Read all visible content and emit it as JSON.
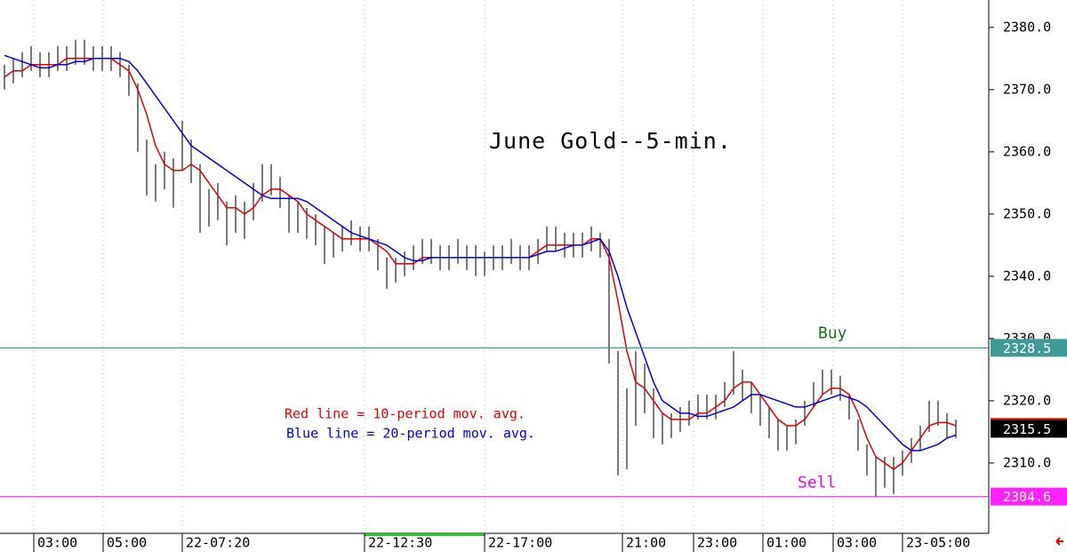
{
  "chart_data": {
    "type": "hilo",
    "title": "June Gold--5-min.",
    "ylim": [
      2298.7,
      2384.4
    ],
    "yticks": [
      {
        "value": 2310,
        "label": "2310.0"
      },
      {
        "value": 2320,
        "label": "2320.0"
      },
      {
        "value": 2330,
        "label": "2330.0"
      },
      {
        "value": 2340,
        "label": "2340.0"
      },
      {
        "value": 2350,
        "label": "2350.0"
      },
      {
        "value": 2360,
        "label": "2360.0"
      },
      {
        "value": 2370,
        "label": "2370.0"
      },
      {
        "value": 2380,
        "label": "2380.0"
      }
    ],
    "xlim": [
      -0.5,
      110.7
    ],
    "xticks": [
      {
        "value": 3.3,
        "label": "03:00"
      },
      {
        "value": 11.1,
        "label": "05:00"
      },
      {
        "value": 20,
        "label": "22-07:20"
      },
      {
        "value": 40.5,
        "label": "22-12:30"
      },
      {
        "value": 54,
        "label": "22-17:00"
      },
      {
        "value": 69.5,
        "label": "21:00"
      },
      {
        "value": 77.5,
        "label": "23:00"
      },
      {
        "value": 85.3,
        "label": "01:00"
      },
      {
        "value": 93.2,
        "label": "03:00"
      },
      {
        "value": 101,
        "label": "23-05:00"
      }
    ],
    "bar_color": "#333333",
    "high": [
      2374,
      2375,
      2376,
      2377,
      2376,
      2376,
      2377,
      2377,
      2378,
      2378,
      2377,
      2377,
      2377,
      2376,
      2374,
      2371,
      2362,
      2358,
      2360,
      2359,
      2365,
      2362,
      2358,
      2354,
      2355,
      2352,
      2353,
      2352,
      2355,
      2358,
      2358,
      2356,
      2353,
      2352,
      2351,
      2350,
      2348,
      2347,
      2348,
      2349,
      2348,
      2348,
      2346,
      2343,
      2343,
      2344,
      2345,
      2346,
      2346,
      2345,
      2345,
      2346,
      2345,
      2345,
      2344,
      2345,
      2345,
      2346,
      2345,
      2345,
      2346,
      2348,
      2348,
      2347,
      2347,
      2347,
      2348,
      2347,
      2346,
      2328,
      2322,
      2328,
      2326,
      2322,
      2318,
      2318,
      2319,
      2320,
      2321,
      2321,
      2321,
      2323,
      2328,
      2325,
      2323,
      2321,
      2319,
      2317,
      2316,
      2317,
      2320,
      2323,
      2325,
      2325,
      2324,
      2321,
      2317,
      2313,
      2311,
      2311,
      2311,
      2312,
      2314,
      2316,
      2320,
      2320,
      2318,
      2317
    ],
    "low": [
      2370,
      2371,
      2372,
      2373,
      2372,
      2372,
      2373,
      2373,
      2374,
      2374,
      2373,
      2373,
      2373,
      2372,
      2369,
      2360,
      2353,
      2352,
      2354,
      2351,
      2357,
      2355,
      2347,
      2348,
      2349,
      2345,
      2347,
      2346,
      2349,
      2352,
      2353,
      2351,
      2347,
      2347,
      2346,
      2345,
      2342,
      2343,
      2344,
      2345,
      2344,
      2344,
      2341,
      2338,
      2339,
      2340,
      2341,
      2342,
      2342,
      2341,
      2341,
      2342,
      2341,
      2340,
      2340,
      2341,
      2341,
      2342,
      2341,
      2341,
      2342,
      2344,
      2344,
      2343,
      2343,
      2343,
      2344,
      2343,
      2326,
      2308,
      2309,
      2316,
      2318,
      2314,
      2313,
      2314,
      2315,
      2316,
      2317,
      2317,
      2317,
      2319,
      2321,
      2320,
      2318,
      2316,
      2314,
      2312,
      2312,
      2313,
      2316,
      2319,
      2321,
      2321,
      2320,
      2317,
      2312,
      2308,
      2304.6,
      2306,
      2305,
      2308,
      2310,
      2312,
      2315,
      2316,
      2314,
      2314
    ],
    "lines": [
      {
        "color": "#e00000",
        "values": [
          2372,
          2373,
          2373,
          2374,
          2374,
          2374,
          2374,
          2375,
          2375,
          2375,
          2375,
          2375,
          2375,
          2374,
          2373,
          2370,
          2366,
          2361,
          2358,
          2357,
          2357,
          2358,
          2357,
          2355,
          2353,
          2351,
          2351,
          2350,
          2351,
          2353,
          2354,
          2354,
          2353,
          2352,
          2350,
          2349,
          2348,
          2347,
          2346,
          2346,
          2346,
          2346,
          2345,
          2344,
          2342,
          2342,
          2342,
          2343,
          2343,
          2343,
          2343,
          2343,
          2343,
          2343,
          2343,
          2343,
          2343,
          2343,
          2343,
          2343,
          2344,
          2345,
          2345,
          2345,
          2345,
          2345,
          2346,
          2346,
          2343,
          2336,
          2328,
          2323,
          2322,
          2320,
          2318,
          2317,
          2317,
          2317,
          2318,
          2318,
          2319,
          2320,
          2322,
          2323,
          2323,
          2321,
          2319,
          2317,
          2316,
          2316,
          2317,
          2319,
          2321,
          2322,
          2322,
          2321,
          2318,
          2314,
          2311,
          2310,
          2309,
          2310,
          2312,
          2314,
          2316,
          2316.5,
          2316.5,
          2316
        ]
      },
      {
        "color": "#0000e0",
        "values": [
          2375.5,
          2375,
          2374.5,
          2374,
          2373.5,
          2373.5,
          2374,
          2374,
          2374.5,
          2374.5,
          2375,
          2375,
          2375,
          2375,
          2374.5,
          2373,
          2371,
          2369,
          2367,
          2365,
          2363,
          2361,
          2360,
          2359,
          2358,
          2357,
          2356,
          2355,
          2354,
          2353,
          2352.5,
          2352.5,
          2352.5,
          2352.5,
          2352,
          2351,
          2350,
          2349,
          2348,
          2347,
          2346.5,
          2346,
          2345.5,
          2345,
          2344,
          2343,
          2342.5,
          2342.5,
          2343,
          2343,
          2343,
          2343,
          2343,
          2343,
          2343,
          2343,
          2343,
          2343,
          2343,
          2343,
          2343.5,
          2344,
          2344,
          2344.5,
          2345,
          2345,
          2345.5,
          2346,
          2344,
          2340,
          2335,
          2331,
          2327,
          2323,
          2320,
          2319,
          2318,
          2318,
          2317.5,
          2317.5,
          2318,
          2318.5,
          2319,
          2320,
          2321,
          2321,
          2320.5,
          2320,
          2319.5,
          2319,
          2319,
          2319.5,
          2320,
          2320.5,
          2321,
          2320.5,
          2320,
          2319,
          2317.5,
          2316,
          2314.5,
          2313,
          2312,
          2312,
          2312.5,
          2313,
          2314,
          2314.5
        ]
      }
    ],
    "levels": [
      {
        "name": "Buy",
        "value": 2328.5,
        "color": "#3f9a95",
        "text_color": "#117711"
      },
      {
        "name": "Sell",
        "value": 2304.6,
        "color": "#ff22ff",
        "text_color": "#ee00ee"
      }
    ],
    "last_price": 2315.5,
    "annotations": [
      {
        "text": "Red line = 10-period mov. avg.",
        "color": "#e00000"
      },
      {
        "text": "Blue line = 20-period mov. avg.",
        "color": "#0000e0"
      }
    ]
  }
}
